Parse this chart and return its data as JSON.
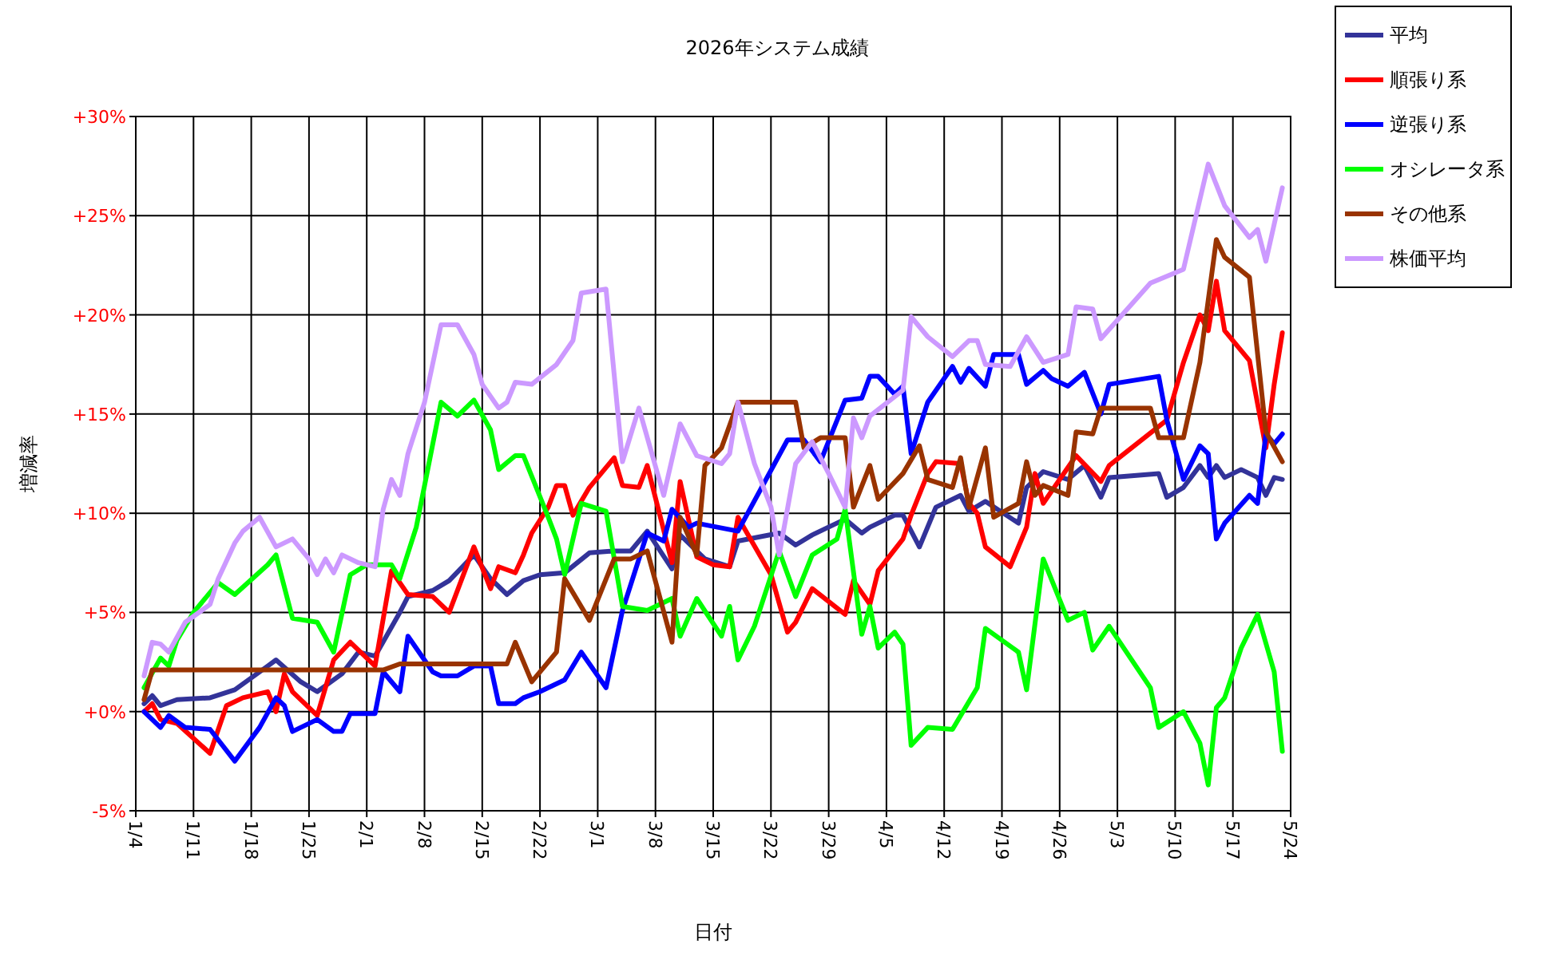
{
  "chart_data": {
    "type": "line",
    "title": "2026年システム成績",
    "xlabel": "日付",
    "ylabel": "増減率",
    "xlim": [
      "--01-04",
      "--05-24"
    ],
    "xticks": [
      {
        "value": "--01-04",
        "label": "1/4"
      },
      {
        "value": "--01-11",
        "label": "1/11"
      },
      {
        "value": "--01-18",
        "label": "1/18"
      },
      {
        "value": "--01-25",
        "label": "1/25"
      },
      {
        "value": "--02-01",
        "label": "2/1"
      },
      {
        "value": "--02-08",
        "label": "2/8"
      },
      {
        "value": "--02-15",
        "label": "2/15"
      },
      {
        "value": "--02-22",
        "label": "2/22"
      },
      {
        "value": "--03-01",
        "label": "3/1"
      },
      {
        "value": "--03-08",
        "label": "3/8"
      },
      {
        "value": "--03-15",
        "label": "3/15"
      },
      {
        "value": "--03-22",
        "label": "3/22"
      },
      {
        "value": "--03-29",
        "label": "3/29"
      },
      {
        "value": "--04-05",
        "label": "4/5"
      },
      {
        "value": "--04-12",
        "label": "4/12"
      },
      {
        "value": "--04-19",
        "label": "4/19"
      },
      {
        "value": "--04-26",
        "label": "4/26"
      },
      {
        "value": "--05-03",
        "label": "5/3"
      },
      {
        "value": "--05-10",
        "label": "5/10"
      },
      {
        "value": "--05-17",
        "label": "5/17"
      },
      {
        "value": "--05-24",
        "label": "5/24"
      }
    ],
    "ylim": [
      -5,
      30
    ],
    "yticks": [
      {
        "value": -5,
        "label": "-5%"
      },
      {
        "value": 0,
        "label": "+0%"
      },
      {
        "value": 5,
        "label": "+5%"
      },
      {
        "value": 10,
        "label": "+10%"
      },
      {
        "value": 15,
        "label": "+15%"
      },
      {
        "value": 20,
        "label": "+20%"
      },
      {
        "value": 25,
        "label": "+25%"
      },
      {
        "value": 30,
        "label": "+30%"
      }
    ],
    "grid": true,
    "legend": "top right",
    "marker": "none",
    "line_style": "solid",
    "series": [
      {
        "name": "平均",
        "color": "#333399",
        "x": [
          "--01-05",
          "--01-06",
          "--01-07",
          "--01-09",
          "--01-13",
          "--01-16",
          "--01-20",
          "--01-21",
          "--01-24",
          "--01-26",
          "--01-29",
          "--01-31",
          "--02-02",
          "--02-05",
          "--02-06",
          "--02-09",
          "--02-11",
          "--02-14",
          "--02-16",
          "--02-18",
          "--02-20",
          "--02-22",
          "--02-25",
          "--02-28",
          "--03-03",
          "--03-05",
          "--03-07",
          "--03-10",
          "--03-11",
          "--03-14",
          "--03-17",
          "--03-18",
          "--03-23",
          "--03-25",
          "--03-27",
          "--03-31",
          "--04-02",
          "--04-03",
          "--04-06",
          "--04-07",
          "--04-09",
          "--04-11",
          "--04-14",
          "--04-15",
          "--04-17",
          "--04-21",
          "--04-22",
          "--04-24",
          "--04-27",
          "--04-29",
          "--05-01",
          "--05-02",
          "--05-08",
          "--05-09",
          "--05-11",
          "--05-13",
          "--05-14",
          "--05-15",
          "--05-16",
          "--05-18",
          "--05-20",
          "--05-21",
          "--05-22",
          "--05-23"
        ],
        "values": [
          0.4,
          0.8,
          0.3,
          0.6,
          0.7,
          1.1,
          2.3,
          2.6,
          1.5,
          1.0,
          1.9,
          3.0,
          2.8,
          5.0,
          5.8,
          6.1,
          6.6,
          7.9,
          6.7,
          5.9,
          6.6,
          6.9,
          7.0,
          8.0,
          8.1,
          8.1,
          9.1,
          7.2,
          8.9,
          7.7,
          7.3,
          8.6,
          9.0,
          8.4,
          8.9,
          9.7,
          9.0,
          9.3,
          9.9,
          9.9,
          8.3,
          10.3,
          10.9,
          10.1,
          10.6,
          9.5,
          11.3,
          12.1,
          11.7,
          12.4,
          10.8,
          11.8,
          12.0,
          10.8,
          11.3,
          12.4,
          11.8,
          12.4,
          11.8,
          12.2,
          11.8,
          10.9,
          11.8,
          11.7
        ]
      },
      {
        "name": "順張り系",
        "color": "#ff0000",
        "x": [
          "--01-05",
          "--01-06",
          "--01-07",
          "--01-09",
          "--01-13",
          "--01-15",
          "--01-17",
          "--01-20",
          "--01-21",
          "--01-22",
          "--01-23",
          "--01-26",
          "--01-28",
          "--01-30",
          "--02-02",
          "--02-04",
          "--02-06",
          "--02-09",
          "--02-11",
          "--02-14",
          "--02-16",
          "--02-17",
          "--02-19",
          "--02-20",
          "--02-21",
          "--02-23",
          "--02-24",
          "--02-25",
          "--02-26",
          "--02-28",
          "--03-03",
          "--03-04",
          "--03-06",
          "--03-07",
          "--03-10",
          "--03-11",
          "--03-13",
          "--03-15",
          "--03-17",
          "--03-18",
          "--03-22",
          "--03-24",
          "--03-25",
          "--03-27",
          "--03-31",
          "--04-01",
          "--04-03",
          "--04-04",
          "--04-07",
          "--04-08",
          "--04-10",
          "--04-11",
          "--04-14",
          "--04-15",
          "--04-16",
          "--04-17",
          "--04-20",
          "--04-22",
          "--04-23",
          "--04-24",
          "--04-28",
          "--05-01",
          "--05-02",
          "--05-09",
          "--05-11",
          "--05-13",
          "--05-14",
          "--05-15",
          "--05-16",
          "--05-19",
          "--05-21",
          "--05-22",
          "--05-23"
        ],
        "values": [
          0,
          0.4,
          -0.4,
          -0.6,
          -2.1,
          0.3,
          0.7,
          1.0,
          0,
          1.9,
          1.0,
          -0.2,
          2.6,
          3.5,
          2.3,
          7.1,
          5.9,
          5.8,
          5.0,
          8.3,
          6.2,
          7.3,
          7.0,
          7.9,
          9.0,
          10.3,
          11.4,
          11.4,
          9.9,
          11.3,
          12.8,
          11.4,
          11.3,
          12.4,
          7.5,
          11.6,
          7.8,
          7.4,
          7.3,
          9.8,
          6.9,
          4.0,
          4.5,
          6.2,
          4.9,
          6.6,
          5.4,
          7.1,
          8.7,
          9.9,
          12.0,
          12.6,
          12.5,
          10.5,
          10.0,
          8.3,
          7.3,
          9.3,
          12.0,
          10.5,
          12.9,
          11.6,
          12.4,
          14.7,
          17.6,
          20.0,
          19.2,
          21.7,
          19.2,
          17.7,
          13.3,
          16.5,
          19.1
        ]
      },
      {
        "name": "逆張り系",
        "color": "#0000ff",
        "x": [
          "--01-05",
          "--01-07",
          "--01-08",
          "--01-10",
          "--01-13",
          "--01-16",
          "--01-19",
          "--01-21",
          "--01-22",
          "--01-23",
          "--01-26",
          "--01-28",
          "--01-29",
          "--01-30",
          "--02-02",
          "--02-03",
          "--02-05",
          "--02-06",
          "--02-09",
          "--02-10",
          "--02-12",
          "--02-14",
          "--02-16",
          "--02-17",
          "--02-19",
          "--02-20",
          "--02-22",
          "--02-25",
          "--02-27",
          "--03-02",
          "--03-04",
          "--03-07",
          "--03-09",
          "--03-10",
          "--03-12",
          "--03-13",
          "--03-18",
          "--03-24",
          "--03-26",
          "--03-28",
          "--03-31",
          "--04-02",
          "--04-03",
          "--04-04",
          "--04-06",
          "--04-07",
          "--04-08",
          "--04-10",
          "--04-13",
          "--04-14",
          "--04-15",
          "--04-17",
          "--04-18",
          "--04-21",
          "--04-22",
          "--04-24",
          "--04-25",
          "--04-27",
          "--04-29",
          "--05-01",
          "--05-02",
          "--05-08",
          "--05-09",
          "--05-11",
          "--05-13",
          "--05-14",
          "--05-15",
          "--05-16",
          "--05-19",
          "--05-20",
          "--05-21",
          "--05-22",
          "--05-23"
        ],
        "values": [
          0,
          -0.8,
          -0.2,
          -0.8,
          -0.9,
          -2.5,
          -0.8,
          0.7,
          0.3,
          -1.0,
          -0.4,
          -1.0,
          -1.0,
          -0.1,
          -0.1,
          2.0,
          1.0,
          3.8,
          2.0,
          1.8,
          1.8,
          2.3,
          2.3,
          0.4,
          0.4,
          0.7,
          1.0,
          1.6,
          3.0,
          1.2,
          5.1,
          9.0,
          8.6,
          10.2,
          9.3,
          9.5,
          9.1,
          13.7,
          13.7,
          12.6,
          15.7,
          15.8,
          16.9,
          16.9,
          16.0,
          16.4,
          13.0,
          15.6,
          17.4,
          16.6,
          17.3,
          16.4,
          18.0,
          18.0,
          16.5,
          17.2,
          16.8,
          16.4,
          17.1,
          15.0,
          16.5,
          16.9,
          14.7,
          11.7,
          13.4,
          13.0,
          8.7,
          9.5,
          10.9,
          10.5,
          14.0,
          13.5,
          14.0
        ]
      },
      {
        "name": "オシレータ系",
        "color": "#00ff00",
        "x": [
          "--01-05",
          "--01-07",
          "--01-08",
          "--01-09",
          "--01-11",
          "--01-14",
          "--01-16",
          "--01-20",
          "--01-21",
          "--01-23",
          "--01-26",
          "--01-28",
          "--01-30",
          "--02-01",
          "--02-04",
          "--02-05",
          "--02-07",
          "--02-08",
          "--02-10",
          "--02-12",
          "--02-14",
          "--02-16",
          "--02-17",
          "--02-19",
          "--02-20",
          "--02-23",
          "--02-24",
          "--02-25",
          "--02-27",
          "--03-02",
          "--03-04",
          "--03-07",
          "--03-10",
          "--03-11",
          "--03-13",
          "--03-16",
          "--03-17",
          "--03-18",
          "--03-20",
          "--03-23",
          "--03-25",
          "--03-27",
          "--03-30",
          "--03-31",
          "--04-02",
          "--04-03",
          "--04-04",
          "--04-06",
          "--04-07",
          "--04-08",
          "--04-10",
          "--04-13",
          "--04-16",
          "--04-17",
          "--04-21",
          "--04-22",
          "--04-24",
          "--04-27",
          "--04-29",
          "--04-30",
          "--05-02",
          "--05-07",
          "--05-08",
          "--05-11",
          "--05-13",
          "--05-14",
          "--05-15",
          "--05-16",
          "--05-18",
          "--05-20",
          "--05-22",
          "--05-23"
        ],
        "values": [
          1.2,
          2.7,
          2.3,
          3.6,
          5.0,
          6.5,
          5.9,
          7.4,
          7.9,
          4.7,
          4.5,
          3.0,
          6.9,
          7.4,
          7.4,
          6.7,
          9.3,
          11.4,
          15.6,
          14.9,
          15.7,
          14.2,
          12.2,
          12.9,
          12.9,
          9.8,
          8.7,
          6.9,
          10.5,
          10.1,
          5.3,
          5.1,
          5.7,
          3.8,
          5.7,
          3.8,
          5.3,
          2.6,
          4.3,
          8.1,
          5.8,
          7.9,
          8.7,
          10.2,
          3.9,
          5.3,
          3.2,
          4.0,
          3.4,
          -1.7,
          -0.8,
          -0.9,
          1.2,
          4.2,
          3.0,
          1.1,
          7.7,
          4.6,
          5.0,
          3.1,
          4.3,
          1.2,
          -0.8,
          0.0,
          -1.6,
          -3.7,
          0.2,
          0.7,
          3.2,
          4.9,
          2.0,
          -2.0
        ]
      },
      {
        "name": "その他系",
        "color": "#993300",
        "x": [
          "--01-05",
          "--01-06",
          "--02-03",
          "--02-05",
          "--02-18",
          "--02-19",
          "--02-21",
          "--02-24",
          "--02-25",
          "--02-28",
          "--03-03",
          "--03-05",
          "--03-07",
          "--03-10",
          "--03-11",
          "--03-13",
          "--03-14",
          "--03-16",
          "--03-18",
          "--03-25",
          "--03-26",
          "--03-28",
          "--03-31",
          "--04-01",
          "--04-03",
          "--04-04",
          "--04-07",
          "--04-09",
          "--04-10",
          "--04-13",
          "--04-14",
          "--04-15",
          "--04-17",
          "--04-18",
          "--04-21",
          "--04-22",
          "--04-23",
          "--04-24",
          "--04-27",
          "--04-28",
          "--04-30",
          "--05-01",
          "--05-07",
          "--05-08",
          "--05-11",
          "--05-13",
          "--05-15",
          "--05-16",
          "--05-19",
          "--05-21",
          "--05-23"
        ],
        "values": [
          0.6,
          2.1,
          2.1,
          2.4,
          2.4,
          3.5,
          1.5,
          3.0,
          6.7,
          4.6,
          7.7,
          7.7,
          8.1,
          3.5,
          9.8,
          7.9,
          12.4,
          13.3,
          15.6,
          15.6,
          13.3,
          13.8,
          13.8,
          10.3,
          12.4,
          10.7,
          12.0,
          13.4,
          11.7,
          11.3,
          12.8,
          10.3,
          13.3,
          9.8,
          10.5,
          12.6,
          10.9,
          11.4,
          10.9,
          14.1,
          14.0,
          15.3,
          15.3,
          13.8,
          13.8,
          17.6,
          23.8,
          22.9,
          21.9,
          14.1,
          12.6
        ]
      },
      {
        "name": "株価平均",
        "color": "#cc99ff",
        "x": [
          "--01-05",
          "--01-06",
          "--01-07",
          "--01-08",
          "--01-10",
          "--01-13",
          "--01-14",
          "--01-16",
          "--01-17",
          "--01-19",
          "--01-21",
          "--01-23",
          "--01-25",
          "--01-26",
          "--01-27",
          "--01-28",
          "--01-29",
          "--01-31",
          "--02-02",
          "--02-03",
          "--02-04",
          "--02-05",
          "--02-06",
          "--02-08",
          "--02-10",
          "--02-12",
          "--02-14",
          "--02-15",
          "--02-17",
          "--02-18",
          "--02-19",
          "--02-21",
          "--02-24",
          "--02-26",
          "--02-27",
          "--03-02",
          "--03-04",
          "--03-06",
          "--03-09",
          "--03-11",
          "--03-13",
          "--03-16",
          "--03-17",
          "--03-18",
          "--03-20",
          "--03-22",
          "--03-23",
          "--03-25",
          "--03-27",
          "--03-29",
          "--03-31",
          "--04-01",
          "--04-02",
          "--04-03",
          "--04-07",
          "--04-08",
          "--04-10",
          "--04-13",
          "--04-15",
          "--04-16",
          "--04-17",
          "--04-20",
          "--04-22",
          "--04-24",
          "--04-27",
          "--04-28",
          "--04-30",
          "--05-01",
          "--05-07",
          "--05-11",
          "--05-14",
          "--05-16",
          "--05-19",
          "--05-20",
          "--05-21",
          "--05-23"
        ],
        "values": [
          1.8,
          3.5,
          3.4,
          3.0,
          4.5,
          5.4,
          6.7,
          8.5,
          9.1,
          9.8,
          8.3,
          8.7,
          7.7,
          6.9,
          7.7,
          7.0,
          7.9,
          7.5,
          7.3,
          10.2,
          11.7,
          10.9,
          13.0,
          15.6,
          19.5,
          19.5,
          18.0,
          16.5,
          15.3,
          15.6,
          16.6,
          16.5,
          17.5,
          18.7,
          21.1,
          21.3,
          12.6,
          15.3,
          10.9,
          14.5,
          12.9,
          12.5,
          13.0,
          15.6,
          12.5,
          10.3,
          7.9,
          12.5,
          13.6,
          12.0,
          10.3,
          14.8,
          13.8,
          14.9,
          16.2,
          19.9,
          18.9,
          17.9,
          18.7,
          18.7,
          17.5,
          17.4,
          18.9,
          17.6,
          18.0,
          20.4,
          20.3,
          18.8,
          21.6,
          22.3,
          27.6,
          25.5,
          23.9,
          24.3,
          22.7,
          26.4
        ]
      }
    ]
  }
}
